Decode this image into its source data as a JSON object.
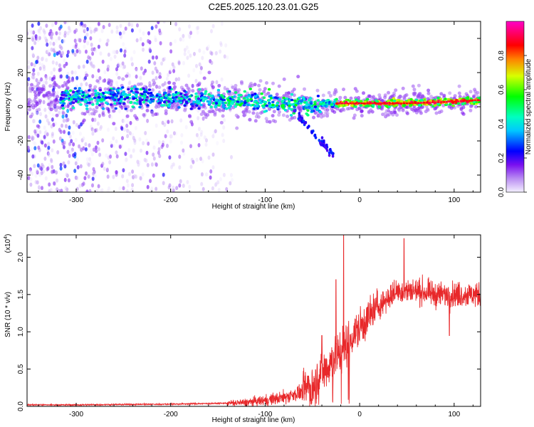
{
  "title": "C2E5.2025.120.23.01.G25",
  "chart_data": [
    {
      "type": "heatmap",
      "xlabel": "Height of straight line (km)",
      "ylabel": "Frequency (Hz)",
      "xlim": [
        -352,
        128
      ],
      "ylim": [
        -50,
        50
      ],
      "xticks": [
        -300,
        -200,
        -100,
        0,
        100
      ],
      "xtick_labels": [
        "-300",
        "-200",
        "-100",
        "0",
        "100"
      ],
      "yticks": [
        -40,
        -20,
        0,
        20,
        40
      ],
      "ytick_labels": [
        "-40",
        "-20",
        "0",
        "20",
        "40"
      ],
      "colorbar": {
        "label": "Normalized spectral amplitude",
        "range": [
          0,
          1
        ],
        "ticks": [
          0.0,
          0.2,
          0.4,
          0.6,
          0.8
        ],
        "tick_labels": [
          "0.0",
          "0.2",
          "0.4",
          "0.6",
          "0.8"
        ],
        "colors": [
          "#f4f0ff",
          "#8a2be2",
          "#0000ff",
          "#00ffff",
          "#00ff00",
          "#ffff00",
          "#ff0000",
          "#ff00ff"
        ]
      },
      "ridge": {
        "x": [
          -350,
          -300,
          -250,
          -200,
          -150,
          -100,
          -80,
          -60,
          -45,
          -35,
          -25,
          0,
          50,
          100,
          128
        ],
        "y": [
          5,
          5,
          6,
          5,
          4,
          3,
          2,
          1,
          0,
          2,
          2,
          2,
          2,
          3,
          4
        ]
      },
      "noise_extent_x": [
        -352,
        -135
      ]
    },
    {
      "type": "line",
      "xlabel": "Height of straight line (km)",
      "ylabel": "SNR (10 * v/v)",
      "multiplier_label": "(x10",
      "multiplier_exp": "4",
      "multiplier_close": ")",
      "xlim": [
        -352,
        128
      ],
      "ylim": [
        0,
        2.3
      ],
      "xticks": [
        -300,
        -200,
        -100,
        0,
        100
      ],
      "xtick_labels": [
        "-300",
        "-200",
        "-100",
        "0",
        "100"
      ],
      "yticks": [
        0.0,
        0.5,
        1.0,
        1.5,
        2.0
      ],
      "ytick_labels": [
        "0.0",
        "0.5",
        "1.0",
        "1.5",
        "2.0"
      ],
      "color": "#e8282a",
      "trend": {
        "x": [
          -352,
          -300,
          -200,
          -150,
          -120,
          -100,
          -80,
          -60,
          -50,
          -40,
          -30,
          -20,
          -10,
          0,
          10,
          20,
          30,
          40,
          60,
          80,
          100,
          128
        ],
        "y": [
          0.02,
          0.02,
          0.03,
          0.04,
          0.05,
          0.08,
          0.12,
          0.2,
          0.3,
          0.45,
          0.6,
          0.75,
          0.9,
          1.05,
          1.2,
          1.35,
          1.45,
          1.55,
          1.55,
          1.5,
          1.5,
          1.5
        ]
      },
      "spikes": [
        {
          "x": -17,
          "y": 2.3
        },
        {
          "x": 47,
          "y": 2.25
        },
        {
          "x": -40,
          "y": 0.95
        },
        {
          "x": -25,
          "y": 1.7
        },
        {
          "x": 95,
          "y": 0.95
        }
      ]
    }
  ]
}
